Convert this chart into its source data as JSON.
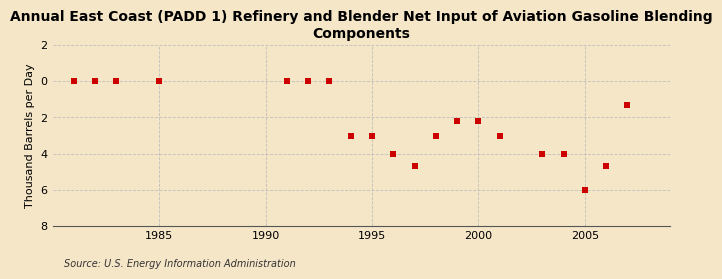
{
  "title": "Annual East Coast (PADD 1) Refinery and Blender Net Input of Aviation Gasoline Blending\nComponents",
  "ylabel": "Thousand Barrels per Day",
  "source": "Source: U.S. Energy Information Administration",
  "background_color": "#f5e6c8",
  "plot_bg_color": "#f5e6c8",
  "years": [
    1981,
    1982,
    1983,
    1985,
    1991,
    1992,
    1993,
    1994,
    1995,
    1996,
    1997,
    1998,
    1999,
    2000,
    2001,
    2003,
    2004,
    2005,
    2006,
    2007
  ],
  "values": [
    0.0,
    0.0,
    0.0,
    0.0,
    0.0,
    0.0,
    0.0,
    -3.0,
    -3.0,
    -4.0,
    -4.7,
    -3.0,
    -2.2,
    -2.2,
    -3.0,
    -4.0,
    -4.0,
    -6.0,
    -4.7,
    -1.3
  ],
  "marker_color": "#cc0000",
  "marker_size": 5,
  "xlim": [
    1980,
    2009
  ],
  "ylim": [
    -8,
    2
  ],
  "yticks": [
    -8,
    -6,
    -4,
    -2,
    0,
    2
  ],
  "ytick_labels": [
    "8",
    "6",
    "4",
    "2",
    "0",
    "2"
  ],
  "xticks": [
    1985,
    1990,
    1995,
    2000,
    2005
  ],
  "grid_color": "#bbbbbb",
  "title_fontsize": 10,
  "label_fontsize": 8,
  "tick_fontsize": 8,
  "source_fontsize": 7
}
